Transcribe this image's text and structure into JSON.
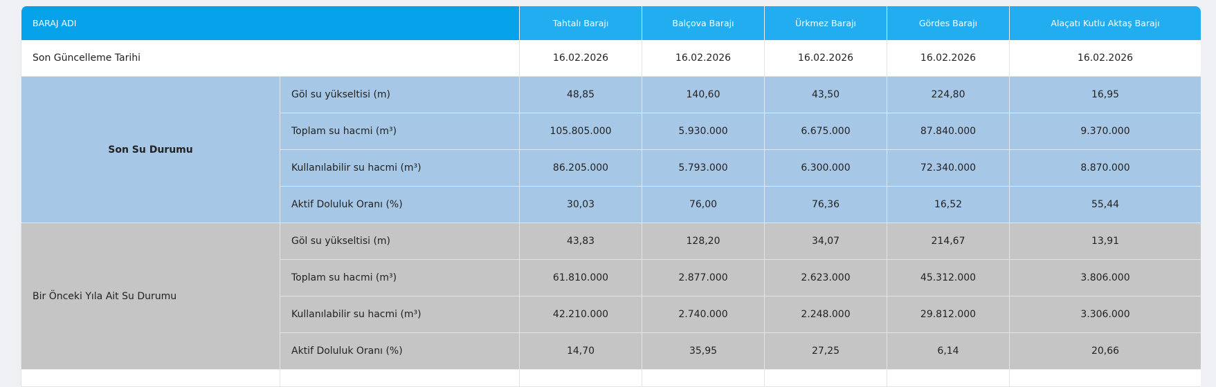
{
  "table": {
    "header": {
      "label": "BARAJ ADI",
      "dams": [
        "Tahtalı Barajı",
        "Balçova Barajı",
        "Ürkmez Barajı",
        "Gördes Barajı",
        "Alaçatı Kutlu Aktaş Barajı"
      ]
    },
    "update_row": {
      "label": "Son Güncelleme Tarihi",
      "values": [
        "16.02.2026",
        "16.02.2026",
        "16.02.2026",
        "16.02.2026",
        "16.02.2026"
      ]
    },
    "groups": [
      {
        "label": "Son Su Durumu",
        "rows": [
          {
            "label": "Göl su yükseltisi (m)",
            "values": [
              "48,85",
              "140,60",
              "43,50",
              "224,80",
              "16,95"
            ]
          },
          {
            "label": "Toplam su hacmi (m³)",
            "values": [
              "105.805.000",
              "5.930.000",
              "6.675.000",
              "87.840.000",
              "9.370.000"
            ]
          },
          {
            "label": "Kullanılabilir su hacmi (m³)",
            "values": [
              "86.205.000",
              "5.793.000",
              "6.300.000",
              "72.340.000",
              "8.870.000"
            ]
          },
          {
            "label": "Aktif Doluluk Oranı (%)",
            "values": [
              "30,03",
              "76,00",
              "76,36",
              "16,52",
              "55,44"
            ]
          }
        ]
      },
      {
        "label": "Bir Önceki Yıla Ait Su Durumu",
        "rows": [
          {
            "label": "Göl su yükseltisi (m)",
            "values": [
              "43,83",
              "128,20",
              "34,07",
              "214,67",
              "13,91"
            ]
          },
          {
            "label": "Toplam su hacmi (m³)",
            "values": [
              "61.810.000",
              "2.877.000",
              "2.623.000",
              "45.312.000",
              "3.806.000"
            ]
          },
          {
            "label": "Kullanılabilir su hacmi (m³)",
            "values": [
              "42.210.000",
              "2.740.000",
              "2.248.000",
              "29.812.000",
              "3.306.000"
            ]
          },
          {
            "label": "Aktif Doluluk Oranı (%)",
            "values": [
              "14,70",
              "35,95",
              "27,25",
              "6,14",
              "20,66"
            ]
          }
        ]
      }
    ]
  }
}
